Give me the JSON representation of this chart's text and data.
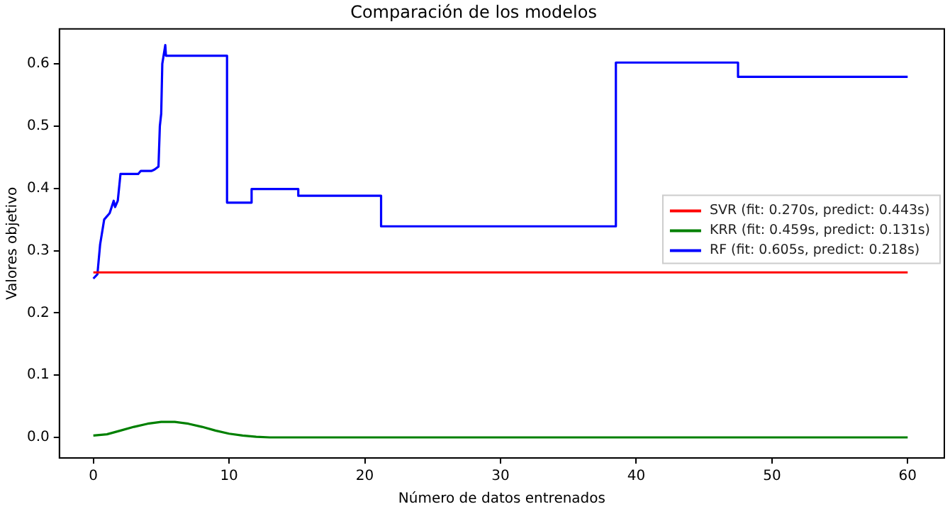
{
  "chart_data": {
    "type": "line",
    "title": "Comparación de los modelos",
    "xlabel": "Número de datos entrenados",
    "ylabel": "Valores objetivo",
    "xlim": [
      -2.5,
      62.7
    ],
    "xticks": [
      0,
      10,
      20,
      30,
      40,
      50,
      60
    ],
    "ylim": [
      -0.033,
      0.656
    ],
    "yticks": [
      {
        "value": 0,
        "label": "0.0"
      },
      {
        "value": 0.1,
        "label": "0.1"
      },
      {
        "value": 0.2,
        "label": "0.2"
      },
      {
        "value": 0.3,
        "label": "0.3"
      },
      {
        "value": 0.4,
        "label": "0.4"
      },
      {
        "value": 0.5,
        "label": "0.5"
      },
      {
        "value": 0.6,
        "label": "0.6"
      }
    ],
    "grid": false,
    "legend": "right",
    "marker": "none",
    "line_style": "solid",
    "series": [
      {
        "name": "SVR (fit: 0.270s, predict: 0.443s)",
        "color": "#ff0000",
        "x": [
          0,
          60
        ],
        "values": [
          0.265,
          0.265
        ]
      },
      {
        "name": "KRR (fit: 0.459s, predict: 0.131s)",
        "color": "#008000",
        "x": [
          0,
          1,
          2,
          3,
          4,
          5,
          6,
          7,
          8,
          9,
          10,
          11,
          12,
          13,
          60
        ],
        "values": [
          0.003,
          0.005,
          0.011,
          0.017,
          0.022,
          0.025,
          0.025,
          0.022,
          0.017,
          0.011,
          0.006,
          0.003,
          0.001,
          0,
          0
        ]
      },
      {
        "name": "RF (fit: 0.605s, predict: 0.218s)",
        "color": "#0000ff",
        "x": [
          0,
          0.3,
          0.5,
          0.8,
          1.2,
          1.5,
          1.6,
          1.8,
          2,
          3.3,
          3.5,
          4.3,
          4.5,
          4.8,
          4.9,
          5,
          5.08,
          5.3,
          5.35,
          9.85,
          9.85,
          11.66,
          11.66,
          15.1,
          15.1,
          21.2,
          21.2,
          38.5,
          38.5,
          47.5,
          47.5,
          60
        ],
        "values": [
          0.255,
          0.262,
          0.31,
          0.35,
          0.36,
          0.38,
          0.37,
          0.38,
          0.423,
          0.423,
          0.428,
          0.428,
          0.43,
          0.435,
          0.5,
          0.52,
          0.6,
          0.63,
          0.613,
          0.613,
          0.377,
          0.377,
          0.399,
          0.399,
          0.388,
          0.388,
          0.339,
          0.339,
          0.602,
          0.602,
          0.579,
          0.579
        ]
      }
    ]
  }
}
